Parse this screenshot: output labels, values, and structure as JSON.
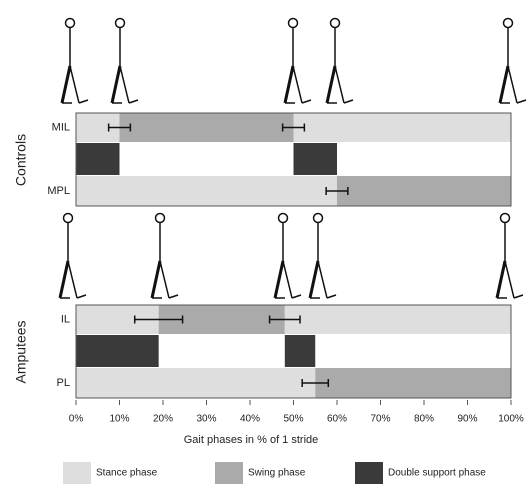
{
  "chart_data": {
    "type": "gantt",
    "x_label": "Gait phases in % of 1 stride",
    "xlim": [
      0,
      100
    ],
    "xticks": [
      {
        "value": 0,
        "label": "0%"
      },
      {
        "value": 10,
        "label": "10%"
      },
      {
        "value": 20,
        "label": "20%"
      },
      {
        "value": 30,
        "label": "30%"
      },
      {
        "value": 40,
        "label": "40%"
      },
      {
        "value": 50,
        "label": "50%"
      },
      {
        "value": 60,
        "label": "60%"
      },
      {
        "value": 70,
        "label": "70%"
      },
      {
        "value": 80,
        "label": "80%"
      },
      {
        "value": 90,
        "label": "90%"
      },
      {
        "value": 100,
        "label": "100%"
      }
    ],
    "legend": [
      {
        "name": "Stance phase",
        "color": "#dedede"
      },
      {
        "name": "Swing phase",
        "color": "#aaaaaa"
      },
      {
        "name": "Double support phase",
        "color": "#3a3a3a"
      }
    ],
    "panels": [
      {
        "label": "Controls",
        "rows": [
          {
            "label": "MIL",
            "segments": [
              {
                "start": 0,
                "end": 10,
                "color": "#dedede"
              },
              {
                "start": 10,
                "end": 50,
                "color": "#aaaaaa"
              },
              {
                "start": 50,
                "end": 100,
                "color": "#dedede"
              }
            ],
            "errors": [
              {
                "value": 10,
                "error": 2.5
              },
              {
                "value": 50,
                "error": 2.5
              }
            ]
          },
          {
            "label": null,
            "segments": [
              {
                "start": 0,
                "end": 10,
                "color": "#3a3a3a"
              },
              {
                "start": 50,
                "end": 60,
                "color": "#3a3a3a"
              }
            ],
            "errors": []
          },
          {
            "label": "MPL",
            "segments": [
              {
                "start": 0,
                "end": 60,
                "color": "#dedede"
              },
              {
                "start": 60,
                "end": 100,
                "color": "#aaaaaa"
              }
            ],
            "errors": [
              {
                "value": 60,
                "error": 2.5
              }
            ]
          }
        ]
      },
      {
        "label": "Amputees",
        "rows": [
          {
            "label": "IL",
            "segments": [
              {
                "start": 0,
                "end": 19,
                "color": "#dedede"
              },
              {
                "start": 19,
                "end": 48,
                "color": "#aaaaaa"
              },
              {
                "start": 48,
                "end": 100,
                "color": "#dedede"
              }
            ],
            "errors": [
              {
                "value": 19,
                "error": 5.5
              },
              {
                "value": 48,
                "error": 3.5
              }
            ]
          },
          {
            "label": null,
            "segments": [
              {
                "start": 0,
                "end": 19,
                "color": "#3a3a3a"
              },
              {
                "start": 48,
                "end": 55,
                "color": "#3a3a3a"
              }
            ],
            "errors": []
          },
          {
            "label": "PL",
            "segments": [
              {
                "start": 0,
                "end": 55,
                "color": "#dedede"
              },
              {
                "start": 55,
                "end": 100,
                "color": "#aaaaaa"
              }
            ],
            "errors": [
              {
                "value": 55,
                "error": 3
              }
            ]
          }
        ]
      }
    ]
  }
}
